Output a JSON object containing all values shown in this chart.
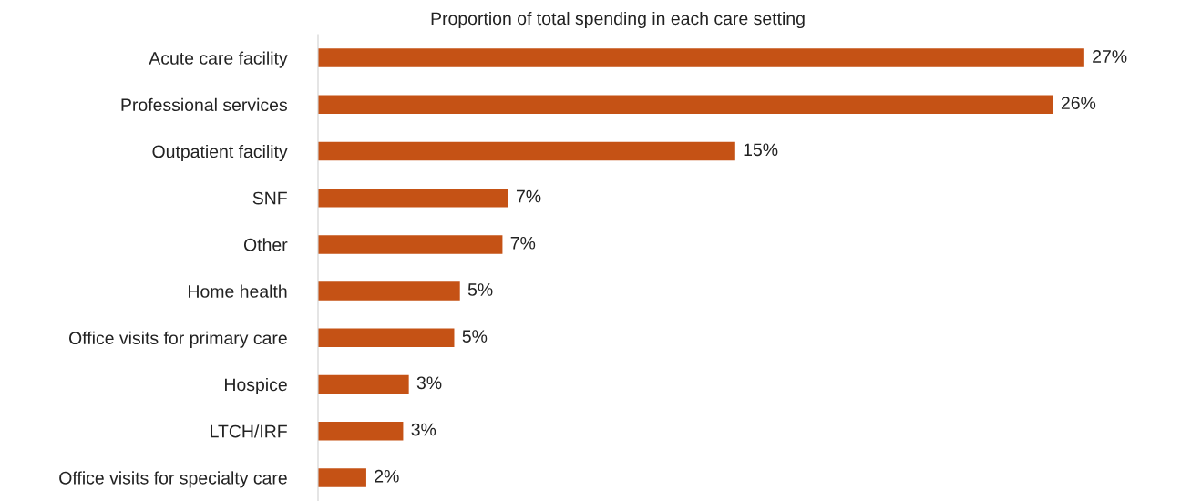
{
  "chart_data": {
    "type": "bar",
    "orientation": "horizontal",
    "title": "Proportion of total spending in each care setting",
    "categories": [
      "Acute care facility",
      "Professional services",
      "Outpatient facility",
      "SNF",
      "Other",
      "Home health",
      "Office visits for primary care",
      "Hospice",
      "LTCH/IRF",
      "Office visits for specialty care"
    ],
    "values": [
      27.0,
      25.9,
      14.7,
      6.7,
      6.5,
      5.0,
      4.8,
      3.2,
      3.0,
      1.7
    ],
    "value_labels": [
      "27%",
      "26%",
      "15%",
      "7%",
      "7%",
      "5%",
      "5%",
      "3%",
      "3%",
      "2%"
    ],
    "color": "#c55215",
    "grid": false,
    "legend": false
  }
}
